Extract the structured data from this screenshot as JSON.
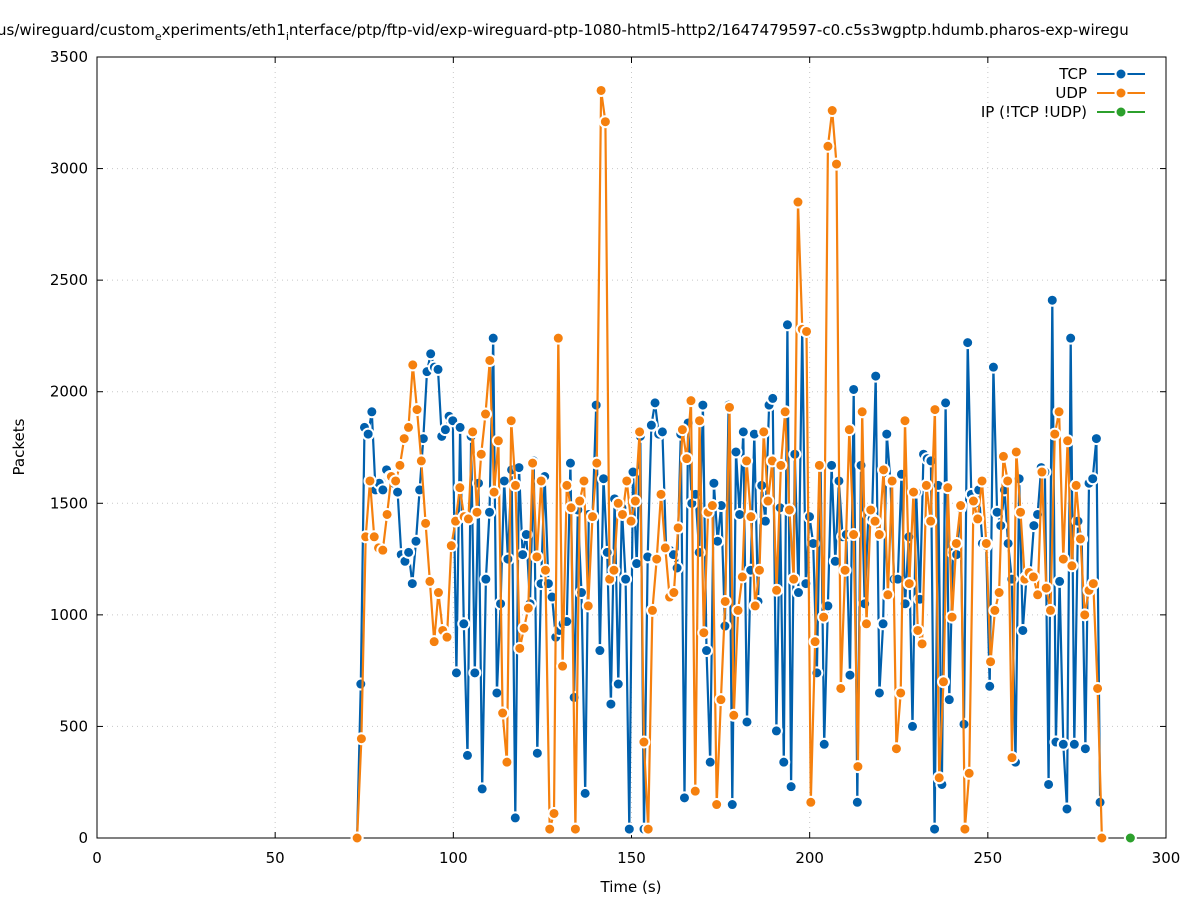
{
  "chart_data": {
    "type": "line",
    "title_parts": [
      "us/wireguard/custom",
      "e",
      "xperiments/eth1",
      "i",
      "nterface/ptp/ftp-vid/exp-wireguard-ptp-1080-html5-http2/1647479597-c0.c5s3wgptp.hdumb.pharos-exp-wiregu"
    ],
    "xlabel": "Time (s)",
    "ylabel": "Packets",
    "xlim": [
      0,
      300
    ],
    "ylim": [
      0,
      3500
    ],
    "xticks": [
      0,
      50,
      100,
      150,
      200,
      250,
      300
    ],
    "yticks": [
      0,
      500,
      1000,
      1500,
      2000,
      2500,
      3000,
      3500
    ],
    "grid": true,
    "legend_position": "top-right",
    "series": [
      {
        "name": "TCP",
        "color": "#0060ad",
        "x_start": 73,
        "x_end": 281.5,
        "values": [
          0,
          690,
          1840,
          1810,
          1910,
          1560,
          1590,
          1560,
          1650,
          1620,
          1590,
          1550,
          1270,
          1240,
          1280,
          1140,
          1330,
          1560,
          1790,
          2090,
          2170,
          2110,
          2100,
          1800,
          1830,
          1890,
          1870,
          740,
          1840,
          960,
          370,
          1800,
          740,
          1590,
          220,
          1160,
          1460,
          2240,
          650,
          1050,
          1600,
          1250,
          1650,
          90,
          1660,
          1270,
          1360,
          1050,
          1690,
          380,
          1140,
          1620,
          1140,
          1080,
          900,
          930,
          960,
          970,
          1680,
          630,
          1470,
          1100,
          200,
          1450,
          1440,
          1940,
          840,
          1610,
          1280,
          600,
          1520,
          690,
          1480,
          1160,
          40,
          1640,
          1230,
          1800,
          40,
          1260,
          1850,
          1950,
          1810,
          1820,
          1300,
          1290,
          1270,
          1210,
          1810,
          180,
          1860,
          1500,
          1540,
          1280,
          1940,
          840,
          340,
          1590,
          1330,
          1490,
          950,
          1940,
          150,
          1730,
          1450,
          1820,
          520,
          1200,
          1810,
          1060,
          1580,
          1420,
          1940,
          1970,
          480,
          1480,
          340,
          2300,
          230,
          1720,
          1100,
          2280,
          1140,
          1440,
          1320,
          740,
          1670,
          420,
          1040,
          1670,
          1240,
          1600,
          1350,
          1360,
          730,
          2010,
          160,
          1670,
          1050,
          1450,
          1430,
          2070,
          650,
          960,
          1810,
          1600,
          1160,
          1160,
          1630,
          1050,
          1350,
          500,
          1550,
          1070,
          1720,
          1700,
          1690,
          40,
          1580,
          240,
          1950,
          620,
          1280,
          1270,
          1480,
          510,
          2220,
          1540,
          1500,
          1560,
          1320,
          1310,
          680,
          2110,
          1460,
          1400,
          1560,
          1320,
          1160,
          340,
          1610,
          930,
          1170,
          1170,
          1400,
          1450,
          1660,
          1640,
          240,
          2410,
          430,
          1150,
          420,
          130,
          2240,
          420,
          1420,
          1340,
          400,
          1590,
          1610,
          1790,
          160
        ]
      },
      {
        "name": "UDP",
        "color": "#f5800e",
        "x_start": 73,
        "x_end": 282,
        "values": [
          0,
          445,
          1350,
          1600,
          1350,
          1300,
          1290,
          1450,
          1620,
          1600,
          1670,
          1790,
          1840,
          2120,
          1920,
          1690,
          1410,
          1150,
          880,
          1100,
          930,
          900,
          1310,
          1420,
          1570,
          1440,
          1430,
          1820,
          1460,
          1720,
          1900,
          2140,
          1550,
          1780,
          560,
          340,
          1870,
          1580,
          850,
          940,
          1030,
          1680,
          1260,
          1600,
          1200,
          40,
          110,
          2240,
          770,
          1580,
          1480,
          40,
          1510,
          1600,
          1040,
          1440,
          1680,
          3350,
          3210,
          1160,
          1200,
          1500,
          1450,
          1600,
          1420,
          1510,
          1820,
          430,
          40,
          1020,
          1250,
          1540,
          1300,
          1080,
          1100,
          1390,
          1830,
          1700,
          1960,
          210,
          1870,
          920,
          1460,
          1490,
          150,
          620,
          1060,
          1930,
          550,
          1020,
          1170,
          1690,
          1440,
          1040,
          1200,
          1820,
          1510,
          1690,
          1110,
          1670,
          1910,
          1470,
          1160,
          2850,
          2280,
          2270,
          160,
          880,
          1670,
          990,
          3100,
          3260,
          3020,
          670,
          1200,
          1830,
          1360,
          320,
          1910,
          960,
          1470,
          1420,
          1360,
          1650,
          1090,
          1600,
          400,
          650,
          1870,
          1140,
          1550,
          930,
          870,
          1580,
          1420,
          1920,
          270,
          700,
          1570,
          990,
          1320,
          1490,
          40,
          290,
          1510,
          1430,
          1600,
          1320,
          790,
          1020,
          1100,
          1710,
          1600,
          360,
          1730,
          1460,
          1160,
          1190,
          1170,
          1090,
          1640,
          1120,
          1020,
          1810,
          1910,
          1250,
          1780,
          1220,
          1580,
          1340,
          1000,
          1110,
          1140,
          670,
          0
        ]
      },
      {
        "name": "IP (!TCP  !UDP)",
        "color": "#2ca02c",
        "x": [
          290
        ],
        "values": [
          0
        ]
      }
    ]
  }
}
